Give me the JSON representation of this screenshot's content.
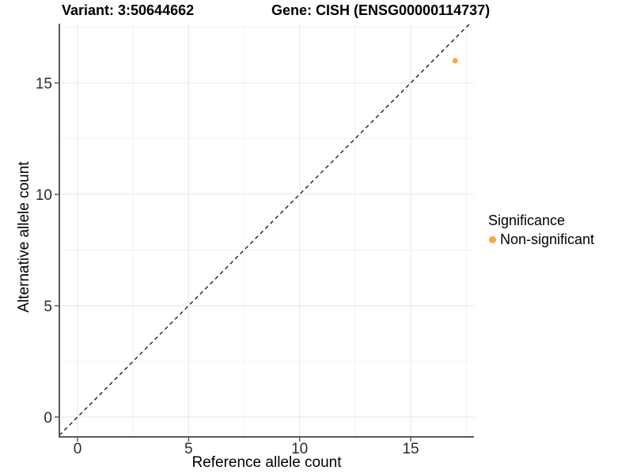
{
  "titles": {
    "variant": "Variant: 3:50644662",
    "gene": "Gene: CISH (ENSG00000114737)"
  },
  "legend": {
    "title": "Significance",
    "items": [
      {
        "label": "Non-significant",
        "color": "#F9A644"
      }
    ]
  },
  "chart_data": {
    "type": "scatter",
    "title": "Variant: 3:50644662  |  Gene: CISH (ENSG00000114737)",
    "xlabel": "Reference allele count",
    "ylabel": "Alternative allele count",
    "xlim": [
      -0.82,
      17.85
    ],
    "ylim": [
      -0.89,
      17.66
    ],
    "x_ticks": [
      0,
      5,
      10,
      15
    ],
    "y_ticks": [
      0,
      5,
      10,
      15
    ],
    "x_minor_ticks": [
      2.5,
      7.5,
      12.5,
      17.5
    ],
    "y_minor_ticks": [
      2.5,
      7.5,
      12.5,
      17.5
    ],
    "grid": true,
    "legend_position": "right",
    "series": [
      {
        "name": "Non-significant",
        "color": "#F9A644",
        "points": [
          {
            "x": 17,
            "y": 16
          }
        ]
      }
    ],
    "abline": {
      "slope": 1,
      "intercept": 0,
      "style": "dashed",
      "color": "#111111"
    }
  },
  "colors": {
    "point": "#F9A644",
    "axis_line": "#5a5a5a",
    "tick_label": "#2b2b2b",
    "grid_major": "#e7e7e7",
    "grid_minor": "#f2f2f2",
    "background": "#ffffff"
  }
}
